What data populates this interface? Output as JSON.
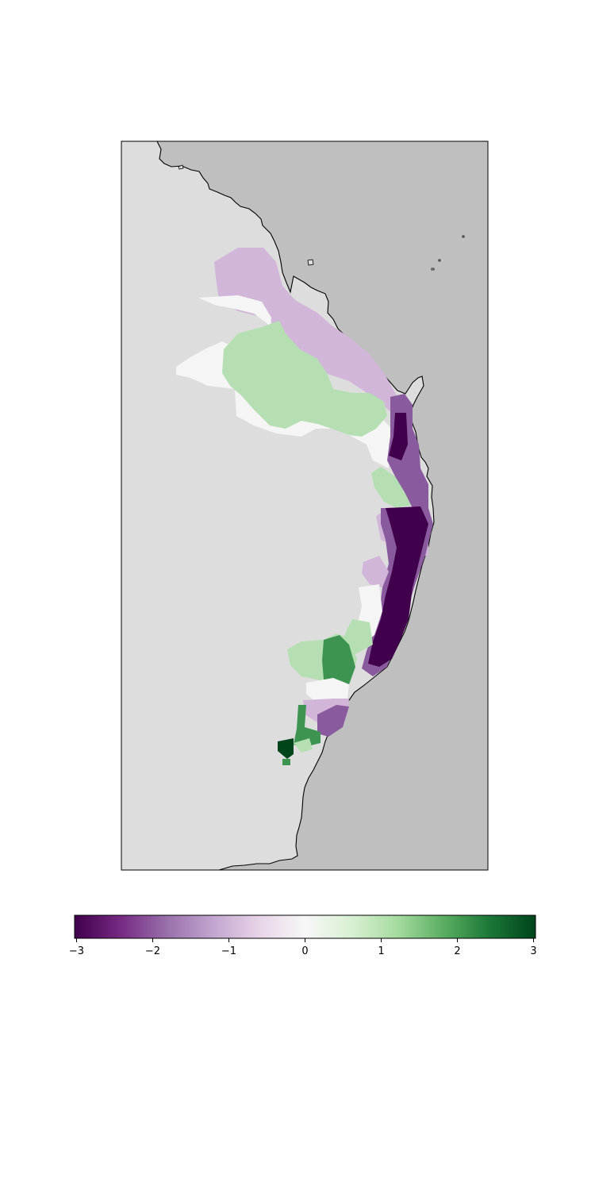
{
  "colors": {
    "land": "#dddddd",
    "ocean": "#bfbfbf",
    "coastline": "#000000",
    "frame": "#000000"
  },
  "map": {
    "type": "choropleth-raster",
    "colormap": "PRGn",
    "value_range": [
      -3,
      3
    ],
    "classes": [
      {
        "value": -3,
        "color": "#40004b"
      },
      {
        "value": -2,
        "color": "#8a5a9e"
      },
      {
        "value": -1,
        "color": "#d1b6d9"
      },
      {
        "value": 0,
        "color": "#f5f5f5"
      },
      {
        "value": 1,
        "color": "#b5dfb2"
      },
      {
        "value": 2,
        "color": "#3c9450"
      },
      {
        "value": 3,
        "color": "#00441b"
      }
    ]
  },
  "colorbar": {
    "orientation": "horizontal",
    "range": [
      -3,
      3
    ],
    "ticks": [
      {
        "value": -3,
        "label": "−3"
      },
      {
        "value": -2,
        "label": "−2"
      },
      {
        "value": -1,
        "label": "−1"
      },
      {
        "value": 0,
        "label": "0"
      },
      {
        "value": 1,
        "label": "1"
      },
      {
        "value": 2,
        "label": "2"
      },
      {
        "value": 3,
        "label": "3"
      }
    ],
    "stops": [
      {
        "value": -3,
        "color": "#40004b"
      },
      {
        "value": -2.4,
        "color": "#762a83"
      },
      {
        "value": -1.8,
        "color": "#9970ab"
      },
      {
        "value": -1.2,
        "color": "#c2a5cf"
      },
      {
        "value": -0.6,
        "color": "#e7d4e8"
      },
      {
        "value": 0,
        "color": "#f7f7f7"
      },
      {
        "value": 0.6,
        "color": "#d9f0d3"
      },
      {
        "value": 1.2,
        "color": "#a6dba0"
      },
      {
        "value": 1.8,
        "color": "#5aae61"
      },
      {
        "value": 2.4,
        "color": "#1b7837"
      },
      {
        "value": 3,
        "color": "#00441b"
      }
    ]
  }
}
